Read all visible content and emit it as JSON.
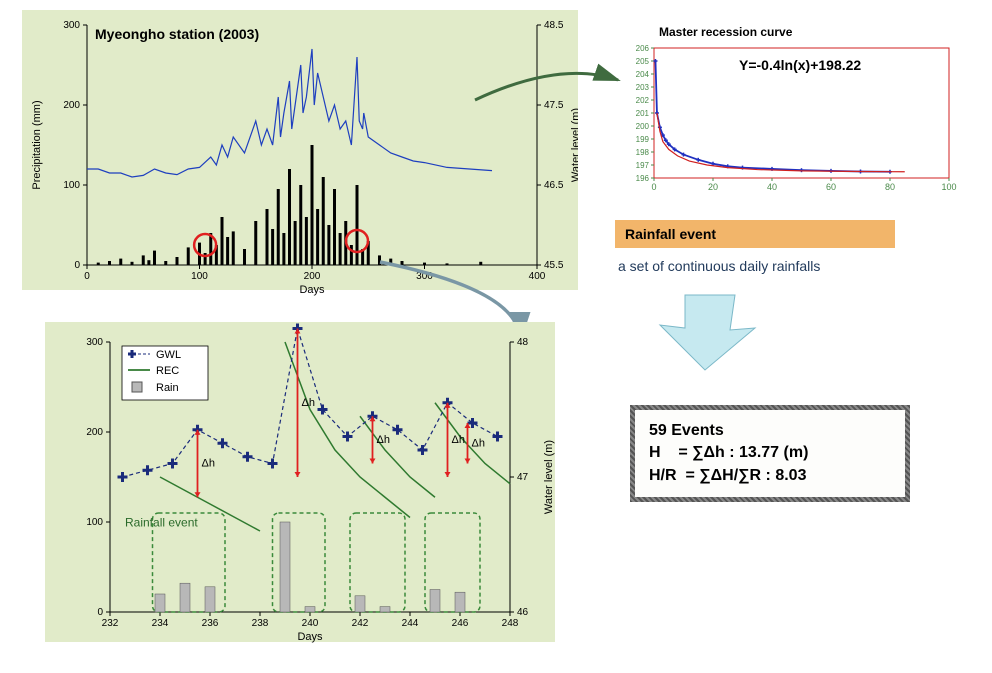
{
  "topChart": {
    "bg": "#e1ebc9",
    "title": "Myeongho station (2003)",
    "xlabel": "Days",
    "ylabel_left": "Precipitation (mm)",
    "ylabel_right": "Water level (m)",
    "xlim": [
      0,
      400
    ],
    "xtick_step": 100,
    "ylim_left": [
      0,
      300
    ],
    "ytick_left": [
      0,
      100,
      200,
      300
    ],
    "ylim_right": [
      45.5,
      48.5
    ],
    "ytick_right": [
      45.5,
      46.5,
      47.5,
      48.5
    ],
    "precip_color": "#000000",
    "wl_color": "#1e3fbf",
    "circle_color": "#e02020",
    "precip_bars": [
      [
        10,
        3
      ],
      [
        20,
        5
      ],
      [
        30,
        8
      ],
      [
        40,
        4
      ],
      [
        50,
        12
      ],
      [
        55,
        6
      ],
      [
        60,
        18
      ],
      [
        70,
        5
      ],
      [
        80,
        10
      ],
      [
        90,
        22
      ],
      [
        100,
        28
      ],
      [
        105,
        15
      ],
      [
        110,
        40
      ],
      [
        115,
        25
      ],
      [
        120,
        60
      ],
      [
        125,
        35
      ],
      [
        130,
        42
      ],
      [
        140,
        20
      ],
      [
        150,
        55
      ],
      [
        160,
        70
      ],
      [
        165,
        45
      ],
      [
        170,
        95
      ],
      [
        175,
        40
      ],
      [
        180,
        120
      ],
      [
        185,
        55
      ],
      [
        190,
        100
      ],
      [
        195,
        60
      ],
      [
        200,
        150
      ],
      [
        205,
        70
      ],
      [
        210,
        110
      ],
      [
        215,
        50
      ],
      [
        220,
        95
      ],
      [
        225,
        40
      ],
      [
        230,
        55
      ],
      [
        235,
        25
      ],
      [
        240,
        100
      ],
      [
        245,
        20
      ],
      [
        250,
        30
      ],
      [
        260,
        12
      ],
      [
        270,
        8
      ],
      [
        280,
        5
      ],
      [
        300,
        3
      ],
      [
        320,
        2
      ],
      [
        350,
        4
      ]
    ],
    "wl_points": [
      [
        0,
        46.7
      ],
      [
        10,
        46.7
      ],
      [
        20,
        46.65
      ],
      [
        30,
        46.65
      ],
      [
        40,
        46.6
      ],
      [
        50,
        46.62
      ],
      [
        60,
        46.7
      ],
      [
        70,
        46.65
      ],
      [
        80,
        46.63
      ],
      [
        90,
        46.7
      ],
      [
        100,
        46.72
      ],
      [
        110,
        46.85
      ],
      [
        115,
        46.75
      ],
      [
        120,
        47.0
      ],
      [
        125,
        46.85
      ],
      [
        130,
        47.1
      ],
      [
        140,
        46.9
      ],
      [
        150,
        47.3
      ],
      [
        155,
        47.0
      ],
      [
        160,
        47.2
      ],
      [
        165,
        47.0
      ],
      [
        170,
        47.6
      ],
      [
        172,
        47.1
      ],
      [
        175,
        47.4
      ],
      [
        180,
        47.8
      ],
      [
        182,
        47.2
      ],
      [
        185,
        47.5
      ],
      [
        190,
        48.0
      ],
      [
        192,
        47.4
      ],
      [
        195,
        47.6
      ],
      [
        200,
        48.2
      ],
      [
        202,
        47.5
      ],
      [
        205,
        47.9
      ],
      [
        210,
        47.6
      ],
      [
        215,
        47.3
      ],
      [
        220,
        47.5
      ],
      [
        225,
        47.2
      ],
      [
        230,
        47.3
      ],
      [
        235,
        47.0
      ],
      [
        240,
        48.1
      ],
      [
        242,
        47.3
      ],
      [
        245,
        47.2
      ],
      [
        246,
        47.4
      ],
      [
        250,
        47.1
      ],
      [
        260,
        47.0
      ],
      [
        270,
        46.9
      ],
      [
        280,
        46.85
      ],
      [
        290,
        46.8
      ],
      [
        300,
        46.78
      ],
      [
        320,
        46.72
      ],
      [
        340,
        46.7
      ],
      [
        360,
        46.68
      ]
    ],
    "circles": [
      [
        105,
        25
      ],
      [
        240,
        30
      ]
    ]
  },
  "recession": {
    "title": "Master recession curve",
    "formula": "Y=-0.4ln(x)+198.22",
    "xlim": [
      0,
      100
    ],
    "xticks": [
      0,
      20,
      40,
      60,
      80,
      100
    ],
    "ylim": [
      196,
      206
    ],
    "yticks": [
      196,
      197,
      198,
      199,
      200,
      201,
      202,
      203,
      204,
      205,
      206
    ],
    "line_blue": "#2030c0",
    "line_red": "#d02020",
    "tick_color": "#4a8a4a",
    "box_color": "#d02020",
    "series_blue": [
      [
        0.5,
        205
      ],
      [
        1,
        201
      ],
      [
        2,
        199.9
      ],
      [
        3,
        199.3
      ],
      [
        4,
        198.9
      ],
      [
        5,
        198.6
      ],
      [
        7,
        198.2
      ],
      [
        10,
        197.8
      ],
      [
        15,
        197.4
      ],
      [
        20,
        197.1
      ],
      [
        25,
        196.9
      ],
      [
        30,
        196.8
      ],
      [
        40,
        196.7
      ],
      [
        50,
        196.6
      ],
      [
        60,
        196.55
      ],
      [
        70,
        196.5
      ],
      [
        80,
        196.48
      ]
    ],
    "series_red": [
      [
        1,
        201
      ],
      [
        2,
        199.6
      ],
      [
        3,
        198.8
      ],
      [
        5,
        198.2
      ],
      [
        8,
        197.7
      ],
      [
        12,
        197.3
      ],
      [
        18,
        197.0
      ],
      [
        25,
        196.8
      ],
      [
        35,
        196.65
      ],
      [
        50,
        196.55
      ],
      [
        70,
        196.5
      ],
      [
        85,
        196.48
      ]
    ]
  },
  "detail": {
    "bg": "#e1ebc9",
    "xlabel": "Days",
    "ylabel_right": "Water level (m)",
    "xlim": [
      232,
      248
    ],
    "xticks": [
      232,
      234,
      236,
      238,
      240,
      242,
      244,
      246,
      248
    ],
    "ylim_left": [
      0,
      300
    ],
    "ytick_left": [
      0,
      100,
      200,
      300
    ],
    "ylim_right": [
      46,
      48
    ],
    "ytick_right": [
      46,
      47,
      48
    ],
    "legend": {
      "gwl": "GWL",
      "rec": "REC",
      "rain": "Rain"
    },
    "gwl_color": "#1a2b7b",
    "rec_color": "#2f7a2f",
    "rain_color": "#b8b8b8",
    "arrow_color": "#e02020",
    "event_box_color": "#3a8a3a",
    "rainfall_label": "Rainfall event",
    "dh_label": "Δh",
    "rain_bars": [
      [
        234,
        20
      ],
      [
        235,
        32
      ],
      [
        236,
        28
      ],
      [
        239,
        100
      ],
      [
        240,
        6
      ],
      [
        242,
        18
      ],
      [
        243,
        6
      ],
      [
        245,
        25
      ],
      [
        246,
        22
      ]
    ],
    "gwl_pts": [
      [
        232.5,
        47.0
      ],
      [
        233.5,
        47.05
      ],
      [
        234.5,
        47.1
      ],
      [
        235.5,
        47.35
      ],
      [
        236.5,
        47.25
      ],
      [
        237.5,
        47.15
      ],
      [
        238.5,
        47.1
      ],
      [
        239.5,
        48.1
      ],
      [
        240.5,
        47.5
      ],
      [
        241.5,
        47.3
      ],
      [
        242.5,
        47.45
      ],
      [
        243.5,
        47.35
      ],
      [
        244.5,
        47.2
      ],
      [
        245.5,
        47.55
      ],
      [
        246.5,
        47.4
      ],
      [
        247.5,
        47.3
      ]
    ],
    "rec_segments": [
      [
        [
          234,
          47.0
        ],
        [
          235,
          46.9
        ],
        [
          236,
          46.8
        ],
        [
          237,
          46.7
        ],
        [
          238,
          46.6
        ]
      ],
      [
        [
          239,
          48.0
        ],
        [
          240,
          47.5
        ],
        [
          241,
          47.2
        ],
        [
          242,
          47.0
        ],
        [
          243,
          46.85
        ],
        [
          244,
          46.7
        ]
      ],
      [
        [
          242,
          47.45
        ],
        [
          243,
          47.2
        ],
        [
          244,
          47.0
        ],
        [
          245,
          46.85
        ]
      ],
      [
        [
          245,
          47.55
        ],
        [
          246,
          47.3
        ],
        [
          247,
          47.1
        ],
        [
          248,
          46.95
        ]
      ]
    ],
    "event_boxes": [
      [
        233.7,
        236.6
      ],
      [
        238.5,
        240.6
      ],
      [
        241.6,
        243.8
      ],
      [
        244.6,
        246.8
      ]
    ],
    "dh_arrows": [
      [
        235.5,
        46.85,
        47.35
      ],
      [
        239.5,
        47.0,
        48.1
      ],
      [
        242.5,
        47.1,
        47.45
      ],
      [
        245.5,
        47.0,
        47.55
      ],
      [
        246.3,
        47.1,
        47.4
      ]
    ]
  },
  "rainfallBox": {
    "title": "Rainfall event",
    "subtitle": "a set of continuous daily rainfalls",
    "bg": "#f2b56a"
  },
  "arrow_block": {
    "fill": "#c6e9f0",
    "border": "#7bb8c8"
  },
  "results": {
    "line1": "59 Events",
    "line2": "H    = ∑Δh : 13.77 (m)",
    "line3": "H/R  = ∑ΔH/∑R : 8.03"
  },
  "connector_arrows": {
    "color1": "#3f6b3f",
    "color2": "#7a97a5"
  }
}
